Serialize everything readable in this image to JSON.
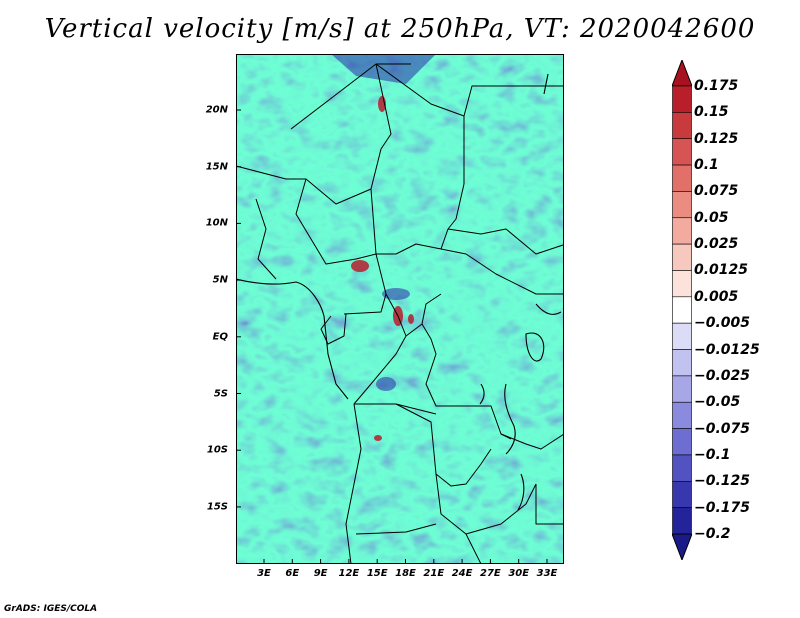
{
  "title": "Vertical velocity [m/s] at 250hPa, VT: 2020042600",
  "credit": "GrADS: IGES/COLA",
  "map": {
    "variable": "Vertical velocity",
    "units": "m/s",
    "level": "250hPa",
    "valid_time": "2020042600",
    "lat_ticks": [
      "20N",
      "15N",
      "10N",
      "5N",
      "EQ",
      "5S",
      "10S",
      "15S"
    ],
    "lon_ticks": [
      "3E",
      "6E",
      "9E",
      "12E",
      "15E",
      "18E",
      "21E",
      "24E",
      "27E",
      "30E",
      "33E"
    ]
  },
  "colorbar": {
    "labels": [
      "0.175",
      "0.15",
      "0.125",
      "0.1",
      "0.075",
      "0.05",
      "0.025",
      "0.0125",
      "0.005",
      "−0.005",
      "−0.0125",
      "−0.025",
      "−0.05",
      "−0.075",
      "−0.1",
      "−0.125",
      "−0.175",
      "−0.2"
    ],
    "colors": [
      "#a81220",
      "#b91f2b",
      "#c93a3c",
      "#d65453",
      "#e07068",
      "#ea8d80",
      "#f2ab9e",
      "#f7c8bd",
      "#fbe2da",
      "#ffffff",
      "#dcdcf7",
      "#c2c2f0",
      "#a7a7e8",
      "#8a8ade",
      "#6e6ed2",
      "#5252c2",
      "#3838ae",
      "#24249a",
      "#1a1a88"
    ]
  },
  "colors": {
    "positive_strong": "#b81c2c",
    "positive_light": "#f2b0a6",
    "negative_light": "#b7b7ee",
    "negative_strong": "#2b2ba8",
    "boundary": "#000000"
  }
}
